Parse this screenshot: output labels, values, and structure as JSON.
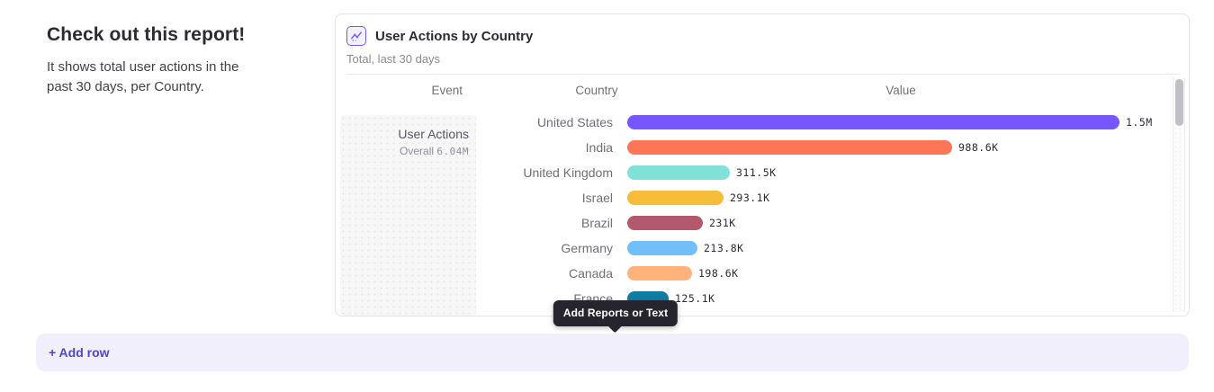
{
  "intro": {
    "title": "Check out this report!",
    "description": "It shows total user actions in the past 30 days, per Country."
  },
  "report_card": {
    "title": "User Actions by Country",
    "subtitle": "Total, last 30 days",
    "icon": "insights-line-chart-icon"
  },
  "chart_data": {
    "type": "bar",
    "orientation": "horizontal",
    "columns": [
      "Event",
      "Country",
      "Value"
    ],
    "event": {
      "name": "User Actions",
      "aggregation": "Overall",
      "total": "6.04M"
    },
    "categories": [
      "United States",
      "India",
      "United Kingdom",
      "Israel",
      "Brazil",
      "Germany",
      "Canada",
      "France"
    ],
    "values": [
      1500000,
      988600,
      311500,
      293100,
      231000,
      213800,
      198600,
      125100
    ],
    "value_labels": [
      "1.5M",
      "988.6K",
      "311.5K",
      "293.1K",
      "231K",
      "213.8K",
      "198.6K",
      "125.1K"
    ],
    "colors": [
      "#7856FF",
      "#FF7557",
      "#80E1D9",
      "#F8BC3B",
      "#B2596E",
      "#72BEF8",
      "#FFB27A",
      "#0D7EA0"
    ],
    "xmax": 1500000,
    "grid": false,
    "legend": "none"
  },
  "tooltip": {
    "label": "Add Reports or Text"
  },
  "add_row": {
    "label": "+ Add row"
  },
  "colors": {
    "accent_purple": "#7856FF",
    "link_purple": "#4F46C8",
    "tooltip_bg": "#26252E",
    "add_row_bg": "#F1EFFB"
  }
}
